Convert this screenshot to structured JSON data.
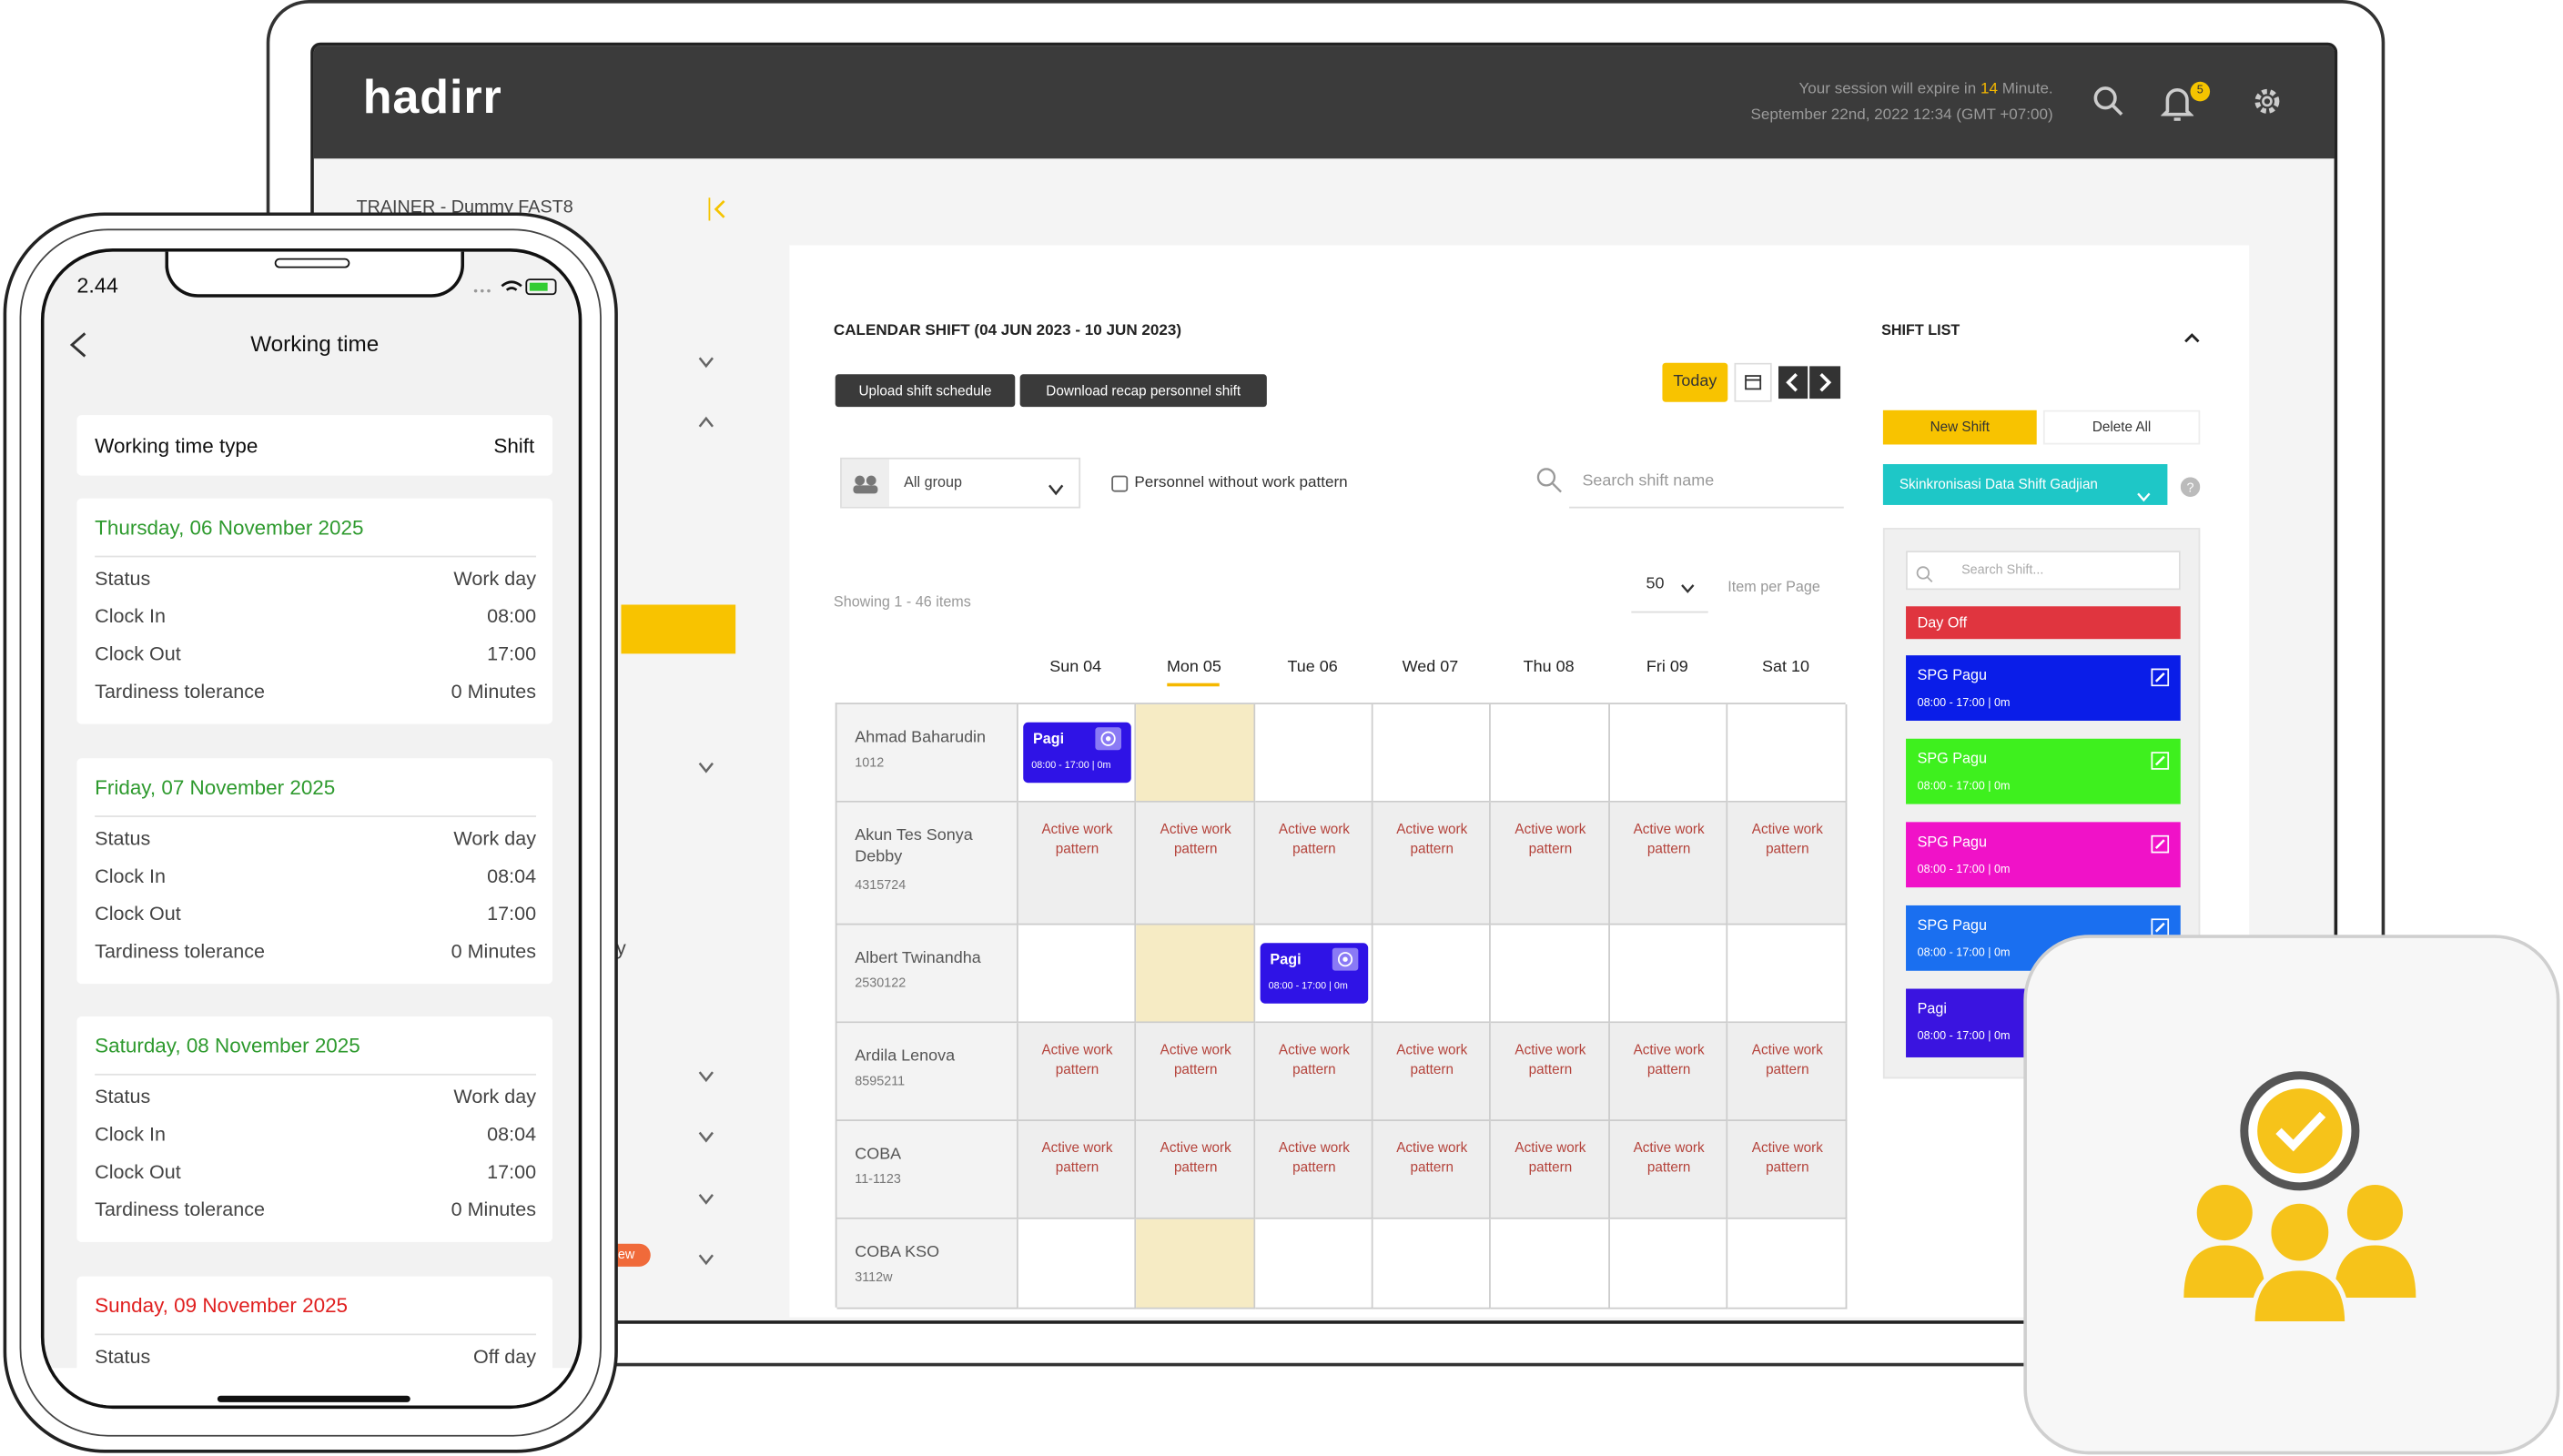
{
  "header": {
    "logo": "hadirr",
    "session_prefix": "Your session will expire in",
    "session_minutes": "14",
    "session_suffix": "Minute.",
    "datetime": "September 22nd, 2022 12:34 (GMT +07:00)",
    "notification_count": "5"
  },
  "sidebar": {
    "org": "TRAINER - Dummy FAST8",
    "fragment": "y",
    "badge": "ew"
  },
  "calendar": {
    "title": "CALENDAR SHIFT (04 JUN 2023 - 10 JUN 2023)",
    "buttons": [
      "Upload shift schedule",
      "Download recap personnel shift"
    ],
    "today": "Today",
    "group": "All group",
    "checkbox": "Personnel without work pattern",
    "search": "Search shift name",
    "showing": "Showing 1 - 46 items",
    "per_page": "50",
    "per_page_label": "Item per Page",
    "days": [
      "Sun 04",
      "Mon 05",
      "Tue 06",
      "Wed 07",
      "Thu 08",
      "Fri 09",
      "Sat 10"
    ],
    "rows": [
      {
        "name": "Ahmad Baharudin",
        "id": "1012",
        "cells": [
          {
            "label": "Pagi",
            "time": "08:00 - 17:00 | 0m"
          },
          null,
          null,
          null,
          null,
          null,
          null
        ]
      },
      {
        "name": "Akun Tes Sonya Debby",
        "id": "4315724",
        "cells": [
          "Active work pattern",
          "Active work pattern",
          "Active work pattern",
          "Active work pattern",
          "Active work pattern",
          "Active work pattern",
          "Active work pattern"
        ]
      },
      {
        "name": "Albert Twinandha",
        "id": "2530122",
        "cells": [
          null,
          null,
          {
            "label": "Pagi",
            "time": "08:00 - 17:00 | 0m"
          },
          null,
          null,
          null,
          null
        ]
      },
      {
        "name": "Ardila Lenova",
        "id": "8595211",
        "cells": [
          "Active work pattern",
          "Active work pattern",
          "Active work pattern",
          "Active work pattern",
          "Active work pattern",
          "Active work pattern",
          "Active work pattern"
        ]
      },
      {
        "name": "COBA",
        "id": "11-1123",
        "cells": [
          "Active work pattern",
          "Active work pattern",
          "Active work pattern",
          "Active work pattern",
          "Active work pattern",
          "Active work pattern",
          "Active work pattern"
        ]
      },
      {
        "name": "COBA KSO",
        "id": "3112w",
        "cells": [
          null,
          null,
          null,
          null,
          null,
          null,
          null
        ]
      }
    ]
  },
  "shift_list": {
    "title": "SHIFT LIST",
    "new_shift": "New Shift",
    "delete_all": "Delete All",
    "sync": "Skinkronisasi Data Shift Gadjian",
    "search": "Search Shift...",
    "day_off": "Day Off",
    "items": [
      {
        "label": "SPG Pagu",
        "time": "08:00 - 17:00 | 0m",
        "color": "#0a1de8"
      },
      {
        "label": "SPG Pagu",
        "time": "08:00 - 17:00 | 0m",
        "color": "#3ef01e"
      },
      {
        "label": "SPG Pagu",
        "time": "08:00 - 17:00 | 0m",
        "color": "#f012c8"
      },
      {
        "label": "SPG Pagu",
        "time": "08:00 - 17:00 | 0m",
        "color": "#1a6ff0"
      },
      {
        "label": "Pagi",
        "time": "08:00 - 17:00 | 0m",
        "color": "#3a14e0"
      }
    ]
  },
  "phone": {
    "time": "2.44",
    "title": "Working time",
    "type_label": "Working time type",
    "type_value": "Shift",
    "days": [
      {
        "date": "Thursday, 06 November 2025",
        "color": "#2e9a2e",
        "rows": [
          [
            "Status",
            "Work day"
          ],
          [
            "Clock In",
            "08:00"
          ],
          [
            "Clock Out",
            "17:00"
          ],
          [
            "Tardiness tolerance",
            "0 Minutes"
          ]
        ]
      },
      {
        "date": "Friday, 07 November 2025",
        "color": "#2e9a2e",
        "rows": [
          [
            "Status",
            "Work day"
          ],
          [
            "Clock In",
            "08:04"
          ],
          [
            "Clock Out",
            "17:00"
          ],
          [
            "Tardiness tolerance",
            "0 Minutes"
          ]
        ]
      },
      {
        "date": "Saturday, 08 November 2025",
        "color": "#2e9a2e",
        "rows": [
          [
            "Status",
            "Work day"
          ],
          [
            "Clock In",
            "08:04"
          ],
          [
            "Clock Out",
            "17:00"
          ],
          [
            "Tardiness tolerance",
            "0 Minutes"
          ]
        ]
      },
      {
        "date": "Sunday, 09 November 2025",
        "color": "#e02020",
        "rows": [
          [
            "Status",
            "Off day"
          ]
        ]
      }
    ]
  }
}
